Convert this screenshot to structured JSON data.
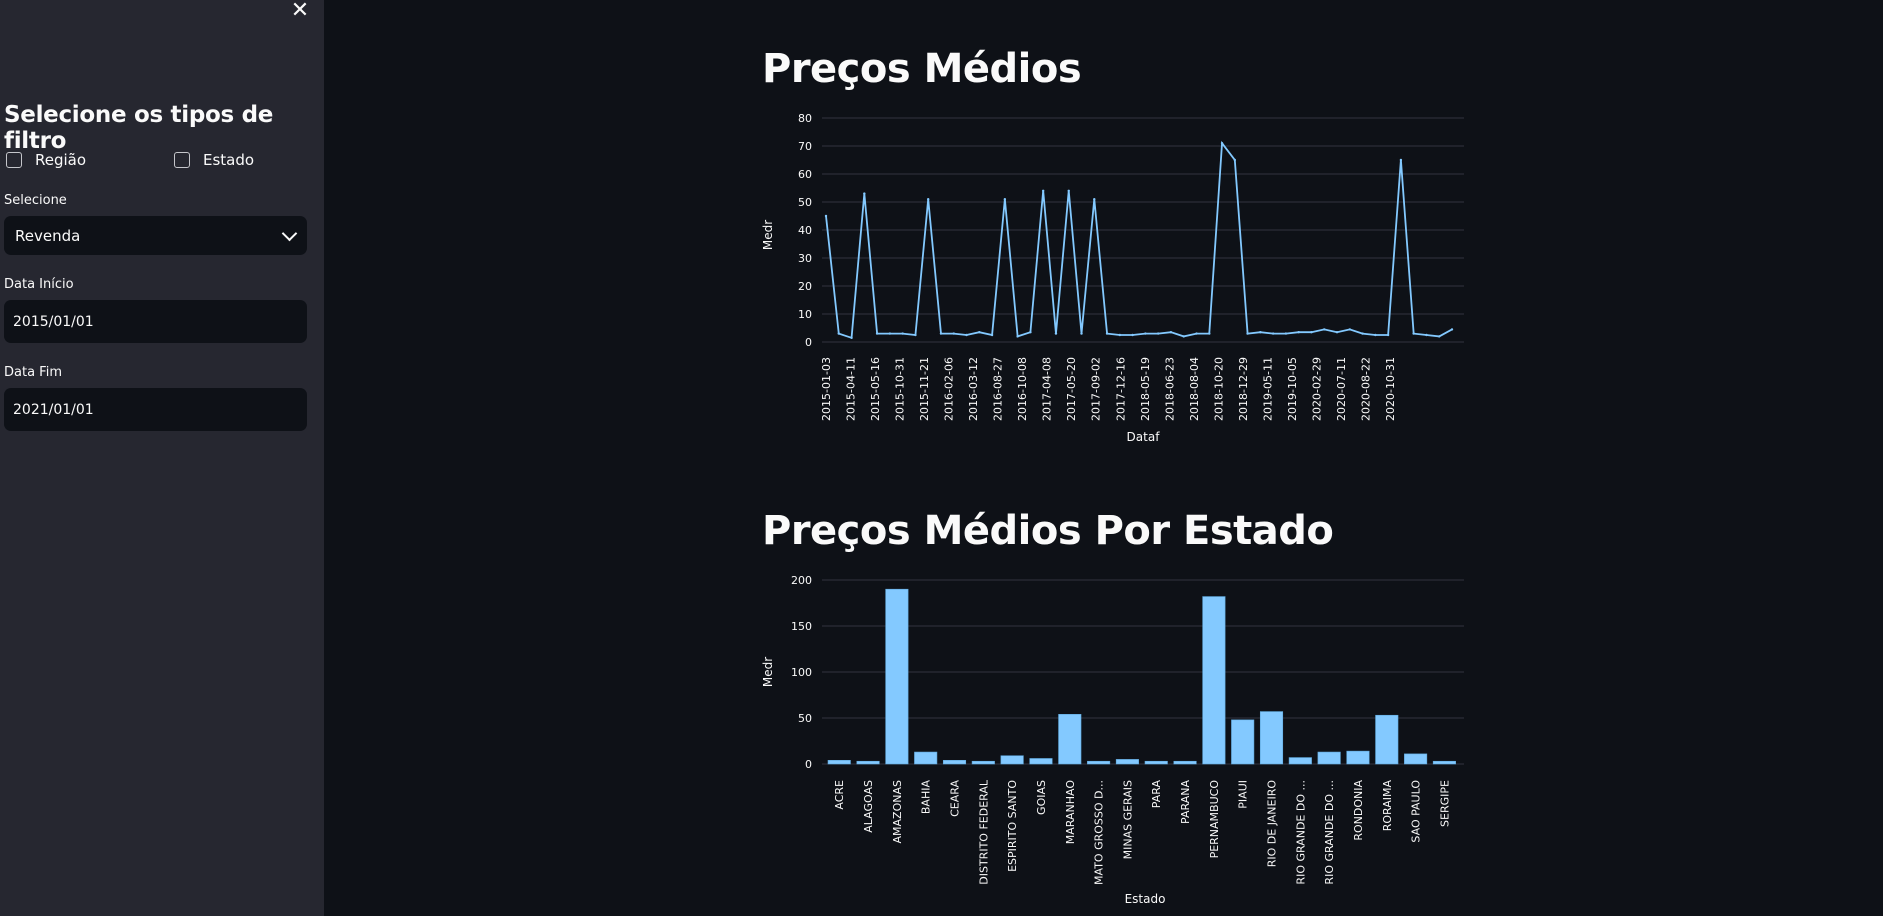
{
  "sidebar": {
    "close_icon": "close-icon",
    "title": "Selecione os tipos de filtro",
    "checkboxes": [
      {
        "label": "Região",
        "checked": false
      },
      {
        "label": "Estado",
        "checked": false
      }
    ],
    "select": {
      "label": "Selecione",
      "value": "Revenda"
    },
    "date_start": {
      "label": "Data Início",
      "value": "2015/01/01"
    },
    "date_end": {
      "label": "Data Fim",
      "value": "2021/01/01"
    }
  },
  "main": {
    "heading1": "Preços Médios",
    "heading2": "Preços Médios Por Estado"
  },
  "colors": {
    "accent": "#83c9ff",
    "sidebar_bg": "#262730",
    "main_bg": "#0e1117"
  },
  "chart_data": [
    {
      "type": "line",
      "xlabel": "Dataf",
      "ylabel": "Medr",
      "ylim": [
        0,
        80
      ],
      "yticks": [
        0,
        10,
        20,
        30,
        40,
        50,
        60,
        70,
        80
      ],
      "x_tick_labels": [
        "2015-01-03",
        "2015-04-11",
        "2015-05-16",
        "2015-10-31",
        "2015-11-21",
        "2016-02-06",
        "2016-03-12",
        "2016-08-27",
        "2016-10-08",
        "2017-04-08",
        "2017-05-20",
        "2017-09-02",
        "2017-12-16",
        "2018-05-19",
        "2018-06-23",
        "2018-08-04",
        "2018-10-20",
        "2018-12-29",
        "2019-05-11",
        "2019-10-05",
        "2020-02-29",
        "2020-07-11",
        "2020-08-22",
        "2020-10-31"
      ],
      "values": [
        45,
        3,
        1.5,
        53,
        3,
        3,
        3,
        2.5,
        51,
        3,
        3,
        2.5,
        3.5,
        2.5,
        51,
        2,
        3.5,
        54,
        3,
        54,
        3,
        51,
        3,
        2.5,
        2.5,
        3,
        3,
        3.5,
        2,
        3,
        3,
        71,
        65,
        3,
        3.5,
        3,
        3,
        3.5,
        3.5,
        4.5,
        3.5,
        4.5,
        3,
        2.5,
        2.5,
        65,
        3,
        2.5,
        2,
        4.5
      ]
    },
    {
      "type": "bar",
      "xlabel": "Estado",
      "ylabel": "Medr",
      "ylim": [
        0,
        200
      ],
      "yticks": [
        0,
        50,
        100,
        150,
        200
      ],
      "categories": [
        "ACRE",
        "ALAGOAS",
        "AMAZONAS",
        "BAHIA",
        "CEARA",
        "DISTRITO FEDERAL",
        "ESPIRITO SANTO",
        "GOIAS",
        "MARANHAO",
        "MATO GROSSO D...",
        "MINAS GERAIS",
        "PARA",
        "PARANA",
        "PERNAMBUCO",
        "PIAUI",
        "RIO DE JANEIRO",
        "RIO GRANDE DO ...",
        "RIO GRANDE DO ...",
        "RONDONIA",
        "RORAIMA",
        "SAO PAULO",
        "SERGIPE"
      ],
      "values": [
        4,
        3,
        190,
        13,
        4,
        3,
        9,
        6,
        54,
        3,
        5,
        3,
        3,
        182,
        48,
        57,
        7,
        13,
        14,
        53,
        11,
        3
      ]
    }
  ]
}
